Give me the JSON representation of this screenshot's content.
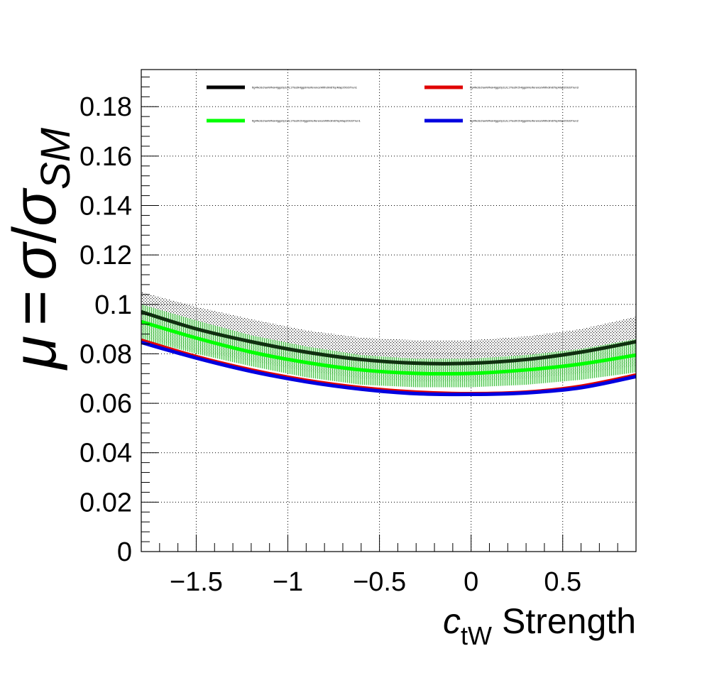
{
  "chart_data": {
    "type": "line",
    "title": "",
    "xlabel": {
      "var": "c",
      "sub": "tW",
      "text": "Strength"
    },
    "ylabel": {
      "mu": "μ",
      "eq": "=",
      "sigma": "σ",
      "slash": "/",
      "sub": "SM"
    },
    "xlim": [
      -1.8,
      0.9
    ],
    "ylim": [
      0,
      0.195
    ],
    "xticks": [
      -1.5,
      -1,
      -0.5,
      0,
      0.5
    ],
    "xtick_labels": [
      "−1.5",
      "−1",
      "−0.5",
      "0",
      "0.5"
    ],
    "yticks": [
      0,
      0.02,
      0.04,
      0.06,
      0.08,
      0.1,
      0.12,
      0.14,
      0.16,
      0.18
    ],
    "ytick_labels": [
      "0",
      "0.02",
      "0.04",
      "0.06",
      "0.08",
      "0.1",
      "0.12",
      "0.14",
      "0.16",
      "0.18"
    ],
    "grid": true,
    "legend_position": "top",
    "series": [
      {
        "name": "ttg4NoSchanWNoHiggs0p1UL17testHiggsInterferenceWithdim6TopMap20GSTrun1",
        "color": "#000000",
        "band_color": "#000000",
        "x": [
          -1.8,
          -1.5,
          -1.2,
          -0.9,
          -0.6,
          -0.3,
          0,
          0.3,
          0.6,
          0.9
        ],
        "y": [
          0.097,
          0.0901,
          0.0849,
          0.0807,
          0.0777,
          0.0762,
          0.0762,
          0.0777,
          0.0807,
          0.0849
        ],
        "band_lo": [
          0.087,
          0.081,
          0.077,
          0.073,
          0.07,
          0.0688,
          0.0688,
          0.07,
          0.072,
          0.075
        ],
        "band_hi": [
          0.105,
          0.099,
          0.094,
          0.0895,
          0.0865,
          0.0855,
          0.0855,
          0.087,
          0.09,
          0.095
        ]
      },
      {
        "name": "ttg4NoSchanWNoHiggs0p1UL17testV2HiggsInterferenceWithdim6TopMap20GSTrun3",
        "color": "#e00000",
        "x": [
          -1.8,
          -1.5,
          -1.2,
          -0.9,
          -0.6,
          -0.3,
          0,
          0.3,
          0.6,
          0.9
        ],
        "y": [
          0.0855,
          0.0789,
          0.0735,
          0.0693,
          0.0663,
          0.0645,
          0.0639,
          0.0645,
          0.0669,
          0.0714
        ]
      },
      {
        "name": "ttg4NoSchanWNoHiggs0p1UL17testV2HiggsInterferenceWithdim6TopMap20GSTrun1",
        "color": "#00ff00",
        "band_color": "#00b000",
        "x": [
          -1.8,
          -1.5,
          -1.2,
          -0.9,
          -0.6,
          -0.3,
          0,
          0.3,
          0.6,
          0.9
        ],
        "y": [
          0.093,
          0.0864,
          0.0807,
          0.0765,
          0.0735,
          0.0721,
          0.0721,
          0.0735,
          0.0759,
          0.0795
        ],
        "band_lo": [
          0.086,
          0.08,
          0.075,
          0.0705,
          0.0675,
          0.0665,
          0.0665,
          0.0675,
          0.0695,
          0.0725
        ],
        "band_hi": [
          0.1,
          0.0935,
          0.0875,
          0.083,
          0.0795,
          0.078,
          0.078,
          0.0795,
          0.082,
          0.086
        ]
      },
      {
        "name": "ttg4NoSchanWNoHiggs0p1UL17testV2HiggsInterferenceWithdim6TopMap20GSTrun2",
        "color": "#0000e0",
        "x": [
          -1.8,
          -1.5,
          -1.2,
          -0.9,
          -0.6,
          -0.3,
          0,
          0.3,
          0.6,
          0.9
        ],
        "y": [
          0.0846,
          0.0783,
          0.0729,
          0.0687,
          0.0657,
          0.0639,
          0.0636,
          0.0642,
          0.0663,
          0.0708
        ]
      }
    ]
  }
}
